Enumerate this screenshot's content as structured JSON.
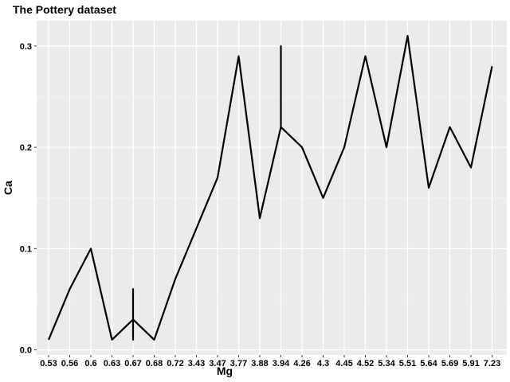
{
  "chart_data": {
    "type": "line",
    "title": "The Pottery dataset",
    "xlabel": "Mg",
    "ylabel": "Ca",
    "categories": [
      "0.53",
      "0.56",
      "0.6",
      "0.63",
      "0.67",
      "0.68",
      "0.72",
      "3.43",
      "3.47",
      "3.77",
      "3.88",
      "3.94",
      "4.26",
      "4.3",
      "4.45",
      "4.52",
      "5.34",
      "5.51",
      "5.64",
      "5.69",
      "5.91",
      "7.23"
    ],
    "series": [
      {
        "points": [
          {
            "x": "0.53",
            "y": 0.01
          },
          {
            "x": "0.56",
            "y": 0.06
          },
          {
            "x": "0.6",
            "y": 0.1
          },
          {
            "x": "0.63",
            "y": 0.01
          },
          {
            "x": "0.67",
            "y": 0.03
          },
          {
            "x": "0.67",
            "y": 0.06
          },
          {
            "x": "0.67",
            "y": 0.01
          },
          {
            "x": "0.67",
            "y": 0.03
          },
          {
            "x": "0.68",
            "y": 0.01
          },
          {
            "x": "0.72",
            "y": 0.07
          },
          {
            "x": "3.43",
            "y": 0.12
          },
          {
            "x": "3.47",
            "y": 0.17
          },
          {
            "x": "3.77",
            "y": 0.29
          },
          {
            "x": "3.88",
            "y": 0.13
          },
          {
            "x": "3.94",
            "y": 0.22
          },
          {
            "x": "3.94",
            "y": 0.3
          },
          {
            "x": "3.94",
            "y": 0.22
          },
          {
            "x": "4.26",
            "y": 0.2
          },
          {
            "x": "4.3",
            "y": 0.15
          },
          {
            "x": "4.45",
            "y": 0.2
          },
          {
            "x": "4.52",
            "y": 0.29
          },
          {
            "x": "5.34",
            "y": 0.2
          },
          {
            "x": "5.51",
            "y": 0.31
          },
          {
            "x": "5.64",
            "y": 0.16
          },
          {
            "x": "5.69",
            "y": 0.22
          },
          {
            "x": "5.91",
            "y": 0.18
          },
          {
            "x": "7.23",
            "y": 0.28
          }
        ]
      }
    ],
    "yticks": [
      0.0,
      0.1,
      0.2,
      0.3
    ],
    "ytick_labels": [
      "0.0",
      "0.1",
      "0.2",
      "0.3"
    ],
    "ylim": [
      -0.005,
      0.325
    ],
    "grid": true,
    "colors": {
      "panel": "#ebebeb",
      "grid_major": "#ffffff",
      "line": "#000000"
    }
  }
}
